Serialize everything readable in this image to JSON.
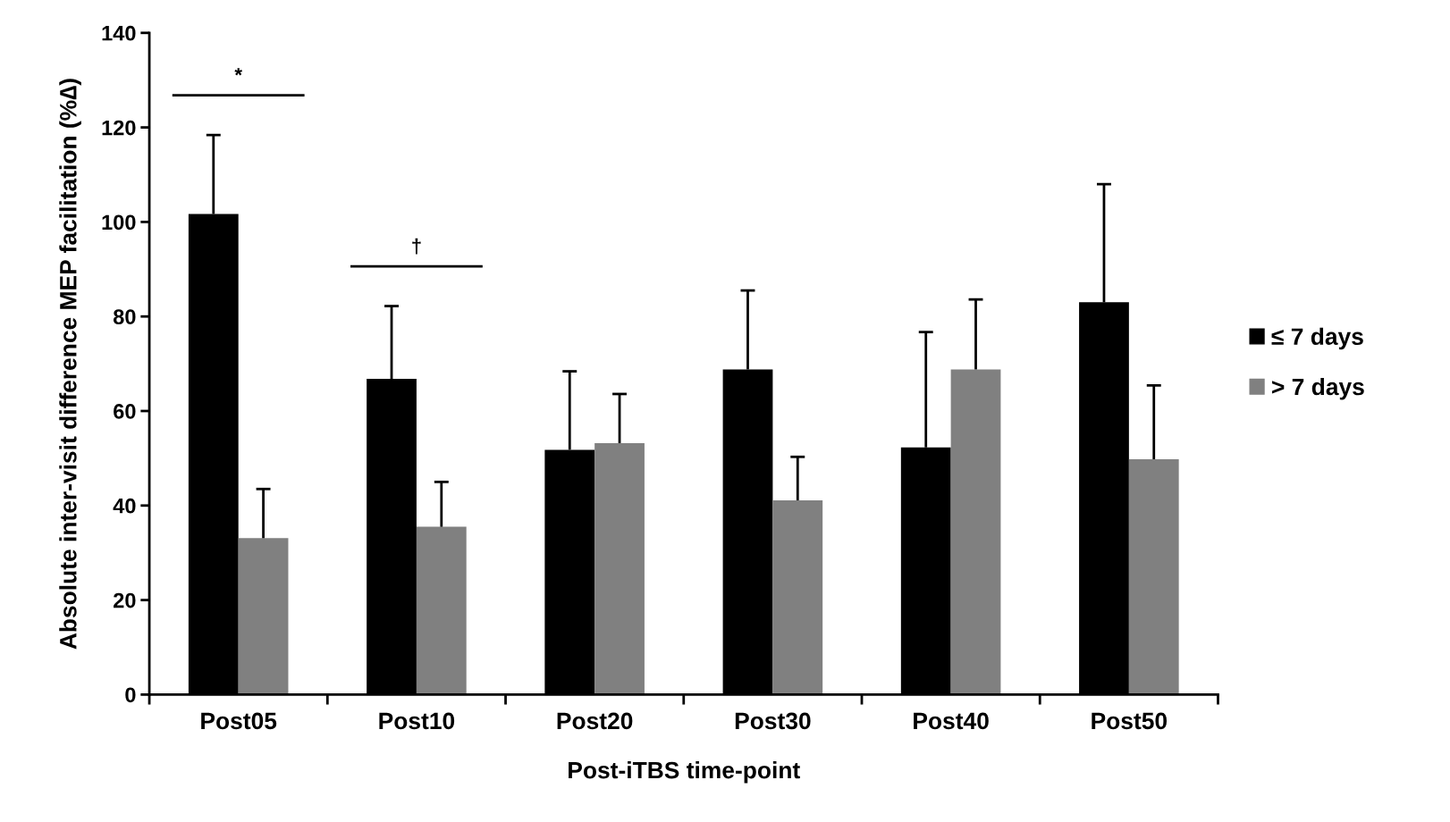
{
  "chart_data": {
    "type": "bar",
    "xlabel": "Post-iTBS time-point",
    "ylabel": "Absolute inter-visit difference MEP facilitation (%∆)",
    "categories": [
      "Post05",
      "Post10",
      "Post20",
      "Post30",
      "Post40",
      "Post50"
    ],
    "series": [
      {
        "name": "≤ 7 days",
        "color": "#000000",
        "values": [
          101.7,
          66.8,
          51.8,
          68.8,
          52.3,
          83.0
        ],
        "errors": [
          [
            101.7,
            118.4
          ],
          [
            66.8,
            82.2
          ],
          [
            51.8,
            68.4
          ],
          [
            68.8,
            85.5
          ],
          [
            52.3,
            76.7
          ],
          [
            83.0,
            108.0
          ]
        ]
      },
      {
        "name": "> 7 days",
        "color": "#808080",
        "values": [
          33.1,
          35.5,
          53.2,
          41.1,
          68.8,
          49.8
        ],
        "errors": [
          [
            33.1,
            43.5
          ],
          [
            35.5,
            45.0
          ],
          [
            53.2,
            63.6
          ],
          [
            41.1,
            50.3
          ],
          [
            68.8,
            83.6
          ],
          [
            49.8,
            65.4
          ]
        ]
      }
    ],
    "annotations": [
      "*",
      "†"
    ],
    "ylim": [
      0,
      140
    ],
    "yticks": [
      0,
      20,
      40,
      60,
      80,
      100,
      120,
      140
    ],
    "grid": false,
    "legend": "right"
  }
}
